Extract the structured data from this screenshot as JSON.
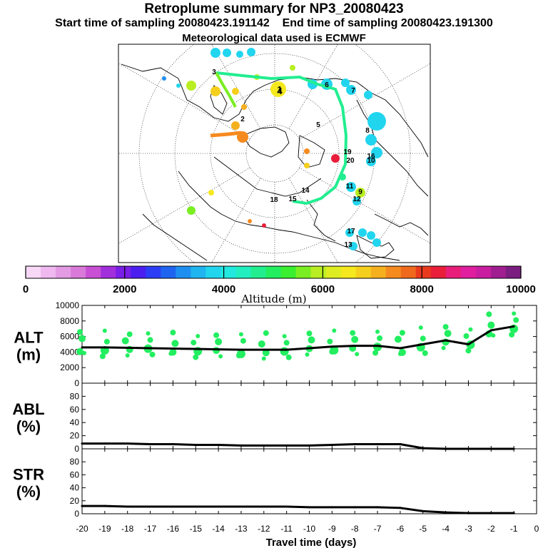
{
  "header": {
    "title": "Retroplume summary for NP3_20080423",
    "start_label": "Start time of sampling 20080423.191142",
    "end_label": "End time of sampling 20080423.191300",
    "met_label": "Meteorological data used is ECMWF"
  },
  "colorbar": {
    "label": "Altitude (m)",
    "ticks": [
      "0",
      "2000",
      "4000",
      "6000",
      "8000",
      "10000"
    ],
    "colors": [
      "#f7d8f7",
      "#efb8ef",
      "#e39be3",
      "#d97ad9",
      "#c94fd4",
      "#a22fdc",
      "#7a1fe8",
      "#4a1ff0",
      "#2b3ef5",
      "#1e64f0",
      "#1e8ff0",
      "#1fb5f0",
      "#22d5ee",
      "#22e8e0",
      "#22eec0",
      "#22ee90",
      "#22ee60",
      "#3aee30",
      "#7aee22",
      "#b8ee22",
      "#dded22",
      "#f5e81e",
      "#f5cf1e",
      "#f5b01e",
      "#f58a1e",
      "#f06a1e",
      "#ea3a1e",
      "#e81e3a",
      "#e81e7a",
      "#e01e9f",
      "#c81e9f",
      "#a01e8f",
      "#7a1e7f"
    ]
  },
  "map": {
    "route_labels": [
      "1",
      "2",
      "3",
      "4",
      "5",
      "6",
      "7",
      "8",
      "9",
      "10",
      "11",
      "12",
      "13",
      "14",
      "15",
      "16",
      "17",
      "18",
      "19",
      "20"
    ]
  },
  "chart_data": [
    {
      "type": "line",
      "name": "ALT",
      "ylabel_line1": "ALT",
      "ylabel_line2": "(m)",
      "ylim": [
        0,
        10000
      ],
      "yticks": [
        "0",
        "2000",
        "4000",
        "6000",
        "8000",
        "10000"
      ],
      "x": [
        -20,
        -19,
        -18,
        -17,
        -16,
        -15,
        -14,
        -13,
        -12,
        -11,
        -10,
        -9,
        -8,
        -7,
        -6,
        -5,
        -4,
        -3,
        -2,
        -1
      ],
      "values": [
        4600,
        4600,
        4550,
        4500,
        4450,
        4400,
        4350,
        4300,
        4300,
        4300,
        4500,
        4700,
        4800,
        4800,
        4500,
        5000,
        5500,
        5000,
        6800,
        7300
      ]
    },
    {
      "type": "line",
      "name": "ABL",
      "ylabel_line1": "ABL",
      "ylabel_line2": "(%)",
      "ylim": [
        0,
        100
      ],
      "yticks": [
        "0",
        "20",
        "40",
        "60",
        "80"
      ],
      "x": [
        -20,
        -19,
        -18,
        -17,
        -16,
        -15,
        -14,
        -13,
        -12,
        -11,
        -10,
        -9,
        -8,
        -7,
        -6,
        -5,
        -4,
        -3,
        -2,
        -1
      ],
      "values": [
        8,
        8,
        8,
        7,
        7,
        6,
        6,
        5,
        5,
        5,
        5,
        6,
        7,
        7,
        7,
        1,
        0,
        0,
        0,
        0
      ]
    },
    {
      "type": "line",
      "name": "STR",
      "ylabel_line1": "STR",
      "ylabel_line2": "(%)",
      "ylim": [
        0,
        100
      ],
      "yticks": [
        "0",
        "20",
        "40",
        "60",
        "80"
      ],
      "x": [
        -20,
        -19,
        -18,
        -17,
        -16,
        -15,
        -14,
        -13,
        -12,
        -11,
        -10,
        -9,
        -8,
        -7,
        -6,
        -5,
        -4,
        -3,
        -2,
        -1
      ],
      "values": [
        12,
        12,
        11,
        11,
        11,
        11,
        11,
        11,
        11,
        11,
        10,
        10,
        10,
        10,
        9,
        4,
        2,
        1,
        1,
        1
      ]
    }
  ],
  "xaxis": {
    "label": "Travel time (days)",
    "ticks": [
      "-20",
      "-19",
      "-18",
      "-17",
      "-16",
      "-15",
      "-14",
      "-13",
      "-12",
      "-11",
      "-10",
      "-9",
      "-8",
      "-7",
      "-6",
      "-5",
      "-4",
      "-3",
      "-2",
      "-1",
      "0"
    ]
  }
}
